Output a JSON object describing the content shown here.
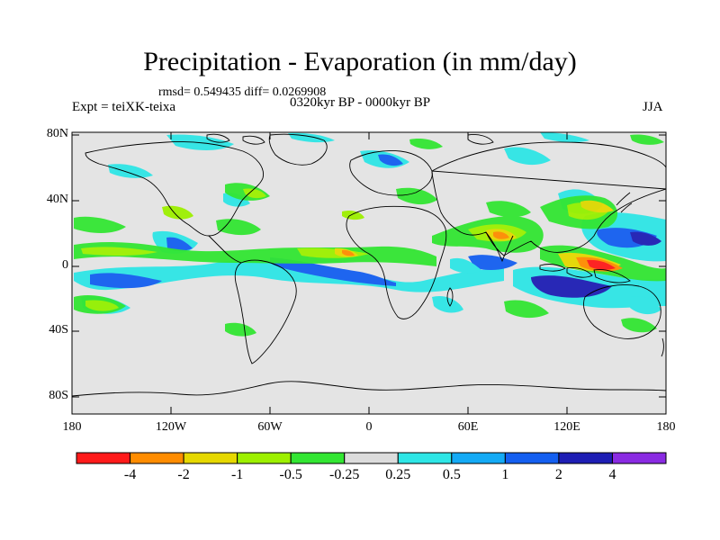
{
  "title": "Precipitation - Evaporation (in mm/day)",
  "stats": "rmsd= 0.549435 diff= 0.0269908",
  "experiment": "Expt = teiXK-teixa",
  "period": "0320kyr BP - 0000kyr BP",
  "season": "JJA",
  "lat_ticks": [
    "80N",
    "40N",
    "0",
    "40S",
    "80S"
  ],
  "lon_ticks": [
    "180",
    "120W",
    "60W",
    "0",
    "60E",
    "120E",
    "180"
  ],
  "colorbar": {
    "labels": [
      "-4",
      "-2",
      "-1",
      "-0.5",
      "-0.25",
      "0.25",
      "0.5",
      "1",
      "2",
      "4"
    ],
    "colors": [
      "#ff1a1a",
      "#ff8c00",
      "#e6d800",
      "#9df000",
      "#33e633",
      "#dcdcdc",
      "#2ee6e6",
      "#14aaf5",
      "#145ff0",
      "#1e1eb4",
      "#8a2be2"
    ]
  }
}
